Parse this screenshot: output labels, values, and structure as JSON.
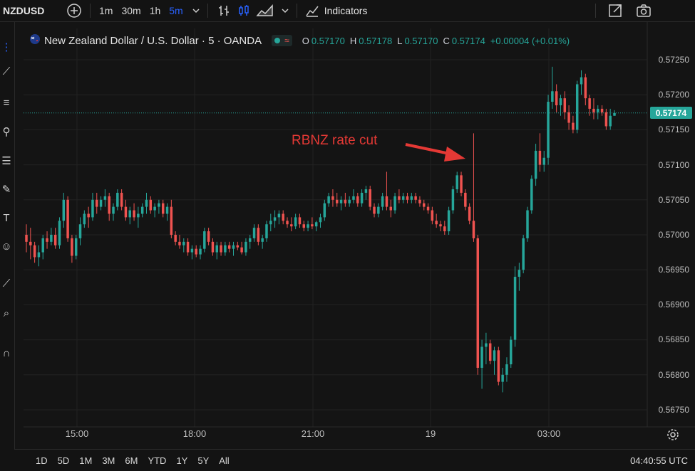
{
  "toolbar": {
    "symbol": "NZDUSD",
    "timeframes": [
      "1m",
      "30m",
      "1h",
      "5m"
    ],
    "active_timeframe": "5m",
    "indicators_label": "Indicators"
  },
  "legend": {
    "title": "New Zealand Dollar / U.S. Dollar · 5 · OANDA",
    "o_label": "O",
    "o_value": "0.57170",
    "h_label": "H",
    "h_value": "0.57178",
    "l_label": "L",
    "l_value": "0.57170",
    "c_label": "C",
    "c_value": "0.57174",
    "change": "+0.00004 (+0.01%)"
  },
  "annotation": {
    "text": "RBNZ rate cut"
  },
  "yaxis": {
    "ticks": [
      "0.57250",
      "0.57200",
      "0.57150",
      "0.57100",
      "0.57050",
      "0.57000",
      "0.56950",
      "0.56900",
      "0.56850",
      "0.56800",
      "0.56750"
    ],
    "last_price": "0.57174"
  },
  "xaxis": {
    "ticks": [
      "15:00",
      "18:00",
      "21:00",
      "19",
      "03:00"
    ]
  },
  "bottom": {
    "ranges": [
      "1D",
      "5D",
      "1M",
      "3M",
      "6M",
      "YTD",
      "1Y",
      "5Y",
      "All"
    ],
    "clock": "04:40:55 UTC"
  },
  "colors": {
    "up": "#26a69a",
    "down": "#ef5350",
    "annotation": "#e53935",
    "active": "#2962ff"
  },
  "chart_data": {
    "type": "candlestick",
    "ylim": [
      0.5673,
      0.5727
    ],
    "last": 0.57174,
    "candles": [
      [
        0.57,
        0.57015,
        0.56975,
        0.5699
      ],
      [
        0.5699,
        0.5701,
        0.56965,
        0.56985
      ],
      [
        0.56985,
        0.5699,
        0.5696,
        0.56968
      ],
      [
        0.56968,
        0.56985,
        0.56955,
        0.56975
      ],
      [
        0.56975,
        0.57,
        0.56965,
        0.56995
      ],
      [
        0.56995,
        0.57005,
        0.5698,
        0.5699
      ],
      [
        0.5699,
        0.5701,
        0.56985,
        0.57
      ],
      [
        0.57,
        0.5701,
        0.5698,
        0.56985
      ],
      [
        0.56985,
        0.57025,
        0.5698,
        0.5702
      ],
      [
        0.5702,
        0.5706,
        0.5701,
        0.5705
      ],
      [
        0.5705,
        0.57055,
        0.5699,
        0.56995
      ],
      [
        0.56995,
        0.57,
        0.5696,
        0.5697
      ],
      [
        0.5697,
        0.57,
        0.56965,
        0.56995
      ],
      [
        0.56995,
        0.57025,
        0.56985,
        0.57015
      ],
      [
        0.57015,
        0.57035,
        0.5701,
        0.5703
      ],
      [
        0.5703,
        0.5704,
        0.5701,
        0.57025
      ],
      [
        0.57025,
        0.5706,
        0.5702,
        0.5705
      ],
      [
        0.5705,
        0.5706,
        0.5703,
        0.5704
      ],
      [
        0.5704,
        0.57055,
        0.57035,
        0.5705
      ],
      [
        0.5705,
        0.57065,
        0.5704,
        0.57055
      ],
      [
        0.57055,
        0.5706,
        0.5702,
        0.5703
      ],
      [
        0.5703,
        0.57045,
        0.5702,
        0.5704
      ],
      [
        0.5704,
        0.57065,
        0.57035,
        0.5706
      ],
      [
        0.5706,
        0.57065,
        0.57035,
        0.5704
      ],
      [
        0.5704,
        0.5705,
        0.5702,
        0.57025
      ],
      [
        0.57025,
        0.5704,
        0.57015,
        0.57035
      ],
      [
        0.57035,
        0.57045,
        0.5702,
        0.57025
      ],
      [
        0.57025,
        0.5704,
        0.5701,
        0.5703
      ],
      [
        0.5703,
        0.57045,
        0.57025,
        0.5704
      ],
      [
        0.5704,
        0.5706,
        0.5703,
        0.5705
      ],
      [
        0.5705,
        0.57055,
        0.5703,
        0.57035
      ],
      [
        0.57035,
        0.57045,
        0.57025,
        0.5704
      ],
      [
        0.5704,
        0.5705,
        0.5703,
        0.57045
      ],
      [
        0.57045,
        0.5705,
        0.57025,
        0.5703
      ],
      [
        0.5703,
        0.57045,
        0.5702,
        0.5704
      ],
      [
        0.5704,
        0.5705,
        0.56995,
        0.57
      ],
      [
        0.57,
        0.57005,
        0.56985,
        0.5699
      ],
      [
        0.5699,
        0.57,
        0.5698,
        0.56985
      ],
      [
        0.56985,
        0.56995,
        0.56975,
        0.5699
      ],
      [
        0.5699,
        0.56995,
        0.5697,
        0.56975
      ],
      [
        0.56975,
        0.56985,
        0.56965,
        0.5698
      ],
      [
        0.5698,
        0.56985,
        0.56968,
        0.56972
      ],
      [
        0.56972,
        0.56985,
        0.56965,
        0.5698
      ],
      [
        0.5698,
        0.5701,
        0.56975,
        0.57005
      ],
      [
        0.57005,
        0.5701,
        0.56985,
        0.5699
      ],
      [
        0.5699,
        0.56995,
        0.5697,
        0.56975
      ],
      [
        0.56975,
        0.5699,
        0.56965,
        0.56985
      ],
      [
        0.56985,
        0.5699,
        0.5697,
        0.56975
      ],
      [
        0.56975,
        0.5699,
        0.5697,
        0.56985
      ],
      [
        0.56985,
        0.5699,
        0.56975,
        0.5698
      ],
      [
        0.5698,
        0.5699,
        0.5697,
        0.56985
      ],
      [
        0.56985,
        0.5699,
        0.56978,
        0.56982
      ],
      [
        0.56982,
        0.5699,
        0.56972,
        0.56975
      ],
      [
        0.56975,
        0.56995,
        0.5697,
        0.5699
      ],
      [
        0.5699,
        0.57,
        0.5698,
        0.56995
      ],
      [
        0.56995,
        0.57015,
        0.5699,
        0.5701
      ],
      [
        0.5701,
        0.57015,
        0.56985,
        0.5699
      ],
      [
        0.5699,
        0.57,
        0.5698,
        0.56995
      ],
      [
        0.56995,
        0.5702,
        0.5699,
        0.57015
      ],
      [
        0.57015,
        0.5703,
        0.57005,
        0.5702
      ],
      [
        0.5702,
        0.57035,
        0.5701,
        0.57025
      ],
      [
        0.57025,
        0.57035,
        0.57015,
        0.5703
      ],
      [
        0.5703,
        0.57035,
        0.57015,
        0.5702
      ],
      [
        0.5702,
        0.57025,
        0.5701,
        0.57015
      ],
      [
        0.57015,
        0.57025,
        0.57005,
        0.57012
      ],
      [
        0.57012,
        0.5703,
        0.57008,
        0.57025
      ],
      [
        0.57025,
        0.5703,
        0.5701,
        0.57015
      ],
      [
        0.57015,
        0.5702,
        0.57005,
        0.5701
      ],
      [
        0.5701,
        0.5702,
        0.57005,
        0.57015
      ],
      [
        0.57015,
        0.57025,
        0.57008,
        0.57012
      ],
      [
        0.57012,
        0.5702,
        0.57005,
        0.57018
      ],
      [
        0.57018,
        0.5703,
        0.5701,
        0.57025
      ],
      [
        0.57025,
        0.5705,
        0.5702,
        0.57045
      ],
      [
        0.57045,
        0.5706,
        0.5704,
        0.57055
      ],
      [
        0.57055,
        0.57065,
        0.5704,
        0.5705
      ],
      [
        0.5705,
        0.5706,
        0.5704,
        0.57045
      ],
      [
        0.57045,
        0.57055,
        0.57035,
        0.5705
      ],
      [
        0.5705,
        0.5706,
        0.5704,
        0.57045
      ],
      [
        0.57045,
        0.57055,
        0.5704,
        0.5705
      ],
      [
        0.5705,
        0.57065,
        0.57045,
        0.57055
      ],
      [
        0.57055,
        0.5706,
        0.5704,
        0.57045
      ],
      [
        0.57045,
        0.57065,
        0.5704,
        0.5706
      ],
      [
        0.5706,
        0.5707,
        0.5705,
        0.57065
      ],
      [
        0.57065,
        0.5707,
        0.57035,
        0.5704
      ],
      [
        0.5704,
        0.57045,
        0.57025,
        0.5703
      ],
      [
        0.5703,
        0.57045,
        0.57025,
        0.5704
      ],
      [
        0.5704,
        0.5706,
        0.57035,
        0.57055
      ],
      [
        0.57055,
        0.5709,
        0.57035,
        0.5704
      ],
      [
        0.5704,
        0.5705,
        0.57025,
        0.57035
      ],
      [
        0.57035,
        0.5706,
        0.5703,
        0.57055
      ],
      [
        0.57055,
        0.57065,
        0.57045,
        0.5705
      ],
      [
        0.5705,
        0.5706,
        0.57045,
        0.57055
      ],
      [
        0.57055,
        0.5706,
        0.57045,
        0.5705
      ],
      [
        0.5705,
        0.5706,
        0.57045,
        0.57055
      ],
      [
        0.57055,
        0.5706,
        0.57045,
        0.5705
      ],
      [
        0.5705,
        0.57055,
        0.5704,
        0.57045
      ],
      [
        0.57045,
        0.5705,
        0.57035,
        0.5704
      ],
      [
        0.5704,
        0.57045,
        0.5703,
        0.57035
      ],
      [
        0.57035,
        0.5704,
        0.57015,
        0.5702
      ],
      [
        0.5702,
        0.5703,
        0.5701,
        0.57015
      ],
      [
        0.57015,
        0.5702,
        0.57005,
        0.57012
      ],
      [
        0.57012,
        0.5702,
        0.57,
        0.57005
      ],
      [
        0.57005,
        0.5704,
        0.57,
        0.57035
      ],
      [
        0.57035,
        0.5707,
        0.5703,
        0.57065
      ],
      [
        0.57065,
        0.5709,
        0.5706,
        0.57085
      ],
      [
        0.57085,
        0.5709,
        0.57055,
        0.5706
      ],
      [
        0.5706,
        0.57065,
        0.57035,
        0.5704
      ],
      [
        0.5704,
        0.57045,
        0.57015,
        0.5702
      ],
      [
        0.5702,
        0.57145,
        0.5699,
        0.56995
      ],
      [
        0.56995,
        0.57,
        0.568,
        0.5681
      ],
      [
        0.5681,
        0.5685,
        0.5678,
        0.5684
      ],
      [
        0.5684,
        0.5686,
        0.56815,
        0.56845
      ],
      [
        0.56845,
        0.5685,
        0.56815,
        0.5682
      ],
      [
        0.5682,
        0.5684,
        0.568,
        0.56835
      ],
      [
        0.56835,
        0.5684,
        0.56785,
        0.5679
      ],
      [
        0.5679,
        0.5681,
        0.56775,
        0.568
      ],
      [
        0.568,
        0.56825,
        0.5679,
        0.56815
      ],
      [
        0.56815,
        0.56855,
        0.5681,
        0.5685
      ],
      [
        0.5685,
        0.56955,
        0.5684,
        0.5694
      ],
      [
        0.5694,
        0.5696,
        0.5692,
        0.5695
      ],
      [
        0.5695,
        0.57,
        0.56945,
        0.56995
      ],
      [
        0.56995,
        0.5704,
        0.5699,
        0.57035
      ],
      [
        0.57035,
        0.57085,
        0.5703,
        0.5708
      ],
      [
        0.5708,
        0.5713,
        0.5707,
        0.5712
      ],
      [
        0.5712,
        0.57145,
        0.5709,
        0.571
      ],
      [
        0.571,
        0.5712,
        0.5709,
        0.5711
      ],
      [
        0.5711,
        0.572,
        0.571,
        0.5719
      ],
      [
        0.5719,
        0.5724,
        0.5718,
        0.57205
      ],
      [
        0.57205,
        0.57215,
        0.57175,
        0.57185
      ],
      [
        0.57185,
        0.572,
        0.5717,
        0.57195
      ],
      [
        0.57195,
        0.57205,
        0.57165,
        0.57175
      ],
      [
        0.57175,
        0.57185,
        0.5715,
        0.5716
      ],
      [
        0.5716,
        0.5717,
        0.57145,
        0.5715
      ],
      [
        0.5715,
        0.5722,
        0.57145,
        0.57215
      ],
      [
        0.57215,
        0.57235,
        0.572,
        0.57225
      ],
      [
        0.57225,
        0.5723,
        0.57185,
        0.57195
      ],
      [
        0.57195,
        0.572,
        0.5717,
        0.5718
      ],
      [
        0.5718,
        0.57195,
        0.57165,
        0.57175
      ],
      [
        0.57175,
        0.57185,
        0.57165,
        0.5718
      ],
      [
        0.5718,
        0.57185,
        0.5717,
        0.57175
      ],
      [
        0.57175,
        0.5718,
        0.5715,
        0.57155
      ],
      [
        0.57155,
        0.5718,
        0.5715,
        0.5717
      ],
      [
        0.5717,
        0.57178,
        0.5717,
        0.57174
      ]
    ]
  }
}
